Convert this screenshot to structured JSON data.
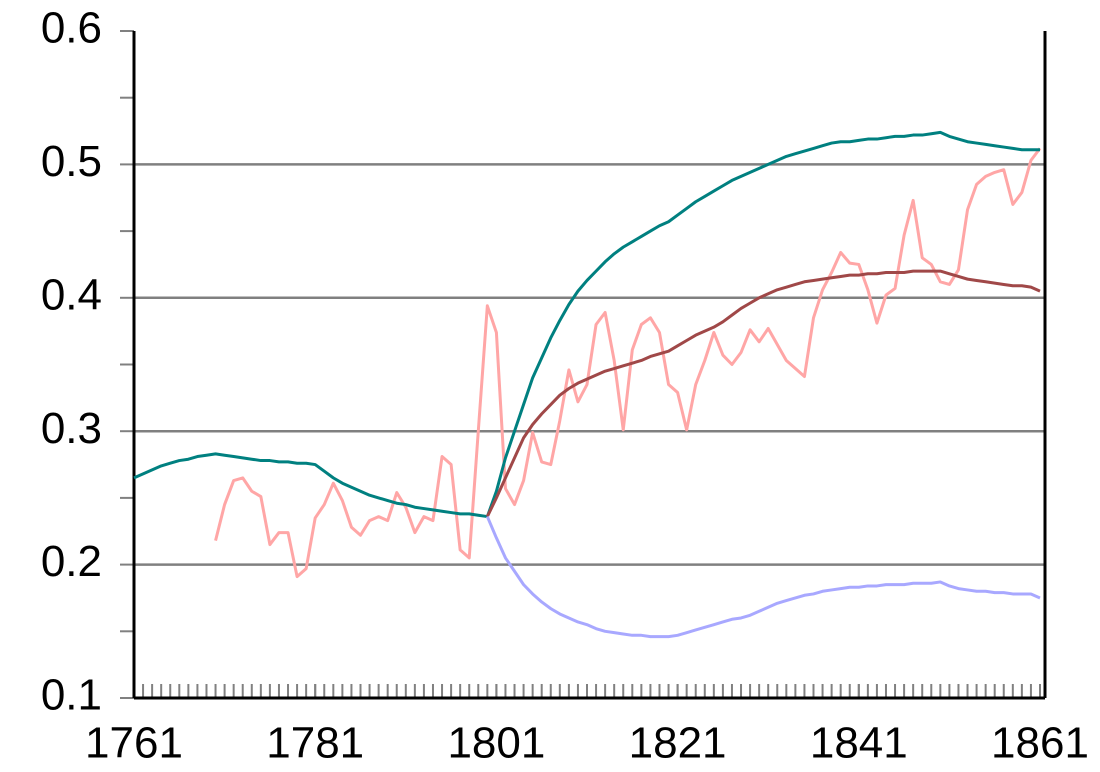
{
  "chart_data": {
    "type": "line",
    "x": [
      1761,
      1762,
      1763,
      1764,
      1765,
      1766,
      1767,
      1768,
      1769,
      1770,
      1771,
      1772,
      1773,
      1774,
      1775,
      1776,
      1777,
      1778,
      1779,
      1780,
      1781,
      1782,
      1783,
      1784,
      1785,
      1786,
      1787,
      1788,
      1789,
      1790,
      1791,
      1792,
      1793,
      1794,
      1795,
      1796,
      1797,
      1798,
      1799,
      1800,
      1801,
      1802,
      1803,
      1804,
      1805,
      1806,
      1807,
      1808,
      1809,
      1810,
      1811,
      1812,
      1813,
      1814,
      1815,
      1816,
      1817,
      1818,
      1819,
      1820,
      1821,
      1822,
      1823,
      1824,
      1825,
      1826,
      1827,
      1828,
      1829,
      1830,
      1831,
      1832,
      1833,
      1834,
      1835,
      1836,
      1837,
      1838,
      1839,
      1840,
      1841,
      1842,
      1843,
      1844,
      1845,
      1846,
      1847,
      1848,
      1849,
      1850,
      1851,
      1852,
      1853,
      1854,
      1855,
      1856,
      1857,
      1858,
      1859,
      1860,
      1861
    ],
    "series": [
      {
        "color": "#ffa6a6",
        "values": [
          null,
          null,
          null,
          null,
          null,
          null,
          null,
          null,
          null,
          0.218,
          0.245,
          0.263,
          0.265,
          0.255,
          0.251,
          0.215,
          0.224,
          0.224,
          0.191,
          0.197,
          0.235,
          0.245,
          0.261,
          0.248,
          0.228,
          0.222,
          0.233,
          0.236,
          0.233,
          0.254,
          0.243,
          0.224,
          0.236,
          0.233,
          0.281,
          0.275,
          0.211,
          0.205,
          0.3,
          0.394,
          0.374,
          0.257,
          0.245,
          0.263,
          0.299,
          0.277,
          0.275,
          0.308,
          0.346,
          0.322,
          0.335,
          0.38,
          0.389,
          0.353,
          0.301,
          0.361,
          0.38,
          0.385,
          0.374,
          0.335,
          0.329,
          0.301,
          0.335,
          0.353,
          0.374,
          0.357,
          0.35,
          0.359,
          0.376,
          0.367,
          0.377,
          0.365,
          0.353,
          0.347,
          0.341,
          0.385,
          0.406,
          0.419,
          0.434,
          0.426,
          0.425,
          0.406,
          0.381,
          0.402,
          0.407,
          0.447,
          0.473,
          0.43,
          0.425,
          0.412,
          0.41,
          0.421,
          0.466,
          0.485,
          0.491,
          0.494,
          0.496,
          0.47,
          0.479,
          0.503,
          0.512
        ]
      },
      {
        "color": "#008080",
        "values": [
          0.265,
          0.268,
          0.271,
          0.274,
          0.276,
          0.278,
          0.279,
          0.281,
          0.282,
          0.283,
          0.282,
          0.281,
          0.28,
          0.279,
          0.278,
          0.278,
          0.277,
          0.277,
          0.276,
          0.276,
          0.275,
          0.27,
          0.265,
          0.261,
          0.258,
          0.255,
          0.252,
          0.25,
          0.248,
          0.246,
          0.245,
          0.243,
          0.242,
          0.241,
          0.24,
          0.239,
          0.238,
          0.238,
          0.237,
          0.236,
          0.255,
          0.28,
          0.3,
          0.32,
          0.34,
          0.355,
          0.37,
          0.383,
          0.395,
          0.405,
          0.413,
          0.42,
          0.427,
          0.433,
          0.438,
          0.442,
          0.446,
          0.45,
          0.454,
          0.457,
          0.462,
          0.467,
          0.472,
          0.476,
          0.48,
          0.484,
          0.488,
          0.491,
          0.494,
          0.497,
          0.5,
          0.503,
          0.506,
          0.508,
          0.51,
          0.512,
          0.514,
          0.516,
          0.517,
          0.517,
          0.518,
          0.519,
          0.519,
          0.52,
          0.521,
          0.521,
          0.522,
          0.522,
          0.523,
          0.524,
          0.521,
          0.519,
          0.517,
          0.516,
          0.515,
          0.514,
          0.513,
          0.512,
          0.511,
          0.511,
          0.511
        ]
      },
      {
        "color": "#a04848",
        "values": [
          null,
          null,
          null,
          null,
          null,
          null,
          null,
          null,
          null,
          null,
          null,
          null,
          null,
          null,
          null,
          null,
          null,
          null,
          null,
          null,
          null,
          null,
          null,
          null,
          null,
          null,
          null,
          null,
          null,
          null,
          null,
          null,
          null,
          null,
          null,
          null,
          null,
          null,
          null,
          0.236,
          0.25,
          0.265,
          0.28,
          0.295,
          0.305,
          0.313,
          0.32,
          0.327,
          0.332,
          0.336,
          0.339,
          0.342,
          0.345,
          0.347,
          0.349,
          0.351,
          0.353,
          0.356,
          0.358,
          0.36,
          0.364,
          0.368,
          0.372,
          0.375,
          0.378,
          0.382,
          0.387,
          0.392,
          0.396,
          0.4,
          0.403,
          0.406,
          0.408,
          0.41,
          0.412,
          0.413,
          0.414,
          0.415,
          0.416,
          0.417,
          0.417,
          0.418,
          0.418,
          0.419,
          0.419,
          0.419,
          0.42,
          0.42,
          0.42,
          0.42,
          0.418,
          0.416,
          0.414,
          0.413,
          0.412,
          0.411,
          0.41,
          0.409,
          0.409,
          0.408,
          0.405
        ]
      },
      {
        "color": "#a8a8ff",
        "values": [
          null,
          null,
          null,
          null,
          null,
          null,
          null,
          null,
          null,
          null,
          null,
          null,
          null,
          null,
          null,
          null,
          null,
          null,
          null,
          null,
          null,
          null,
          null,
          null,
          null,
          null,
          null,
          null,
          null,
          null,
          null,
          null,
          null,
          null,
          null,
          null,
          null,
          null,
          null,
          0.236,
          0.22,
          0.205,
          0.195,
          0.185,
          0.178,
          0.172,
          0.167,
          0.163,
          0.16,
          0.157,
          0.155,
          0.152,
          0.15,
          0.149,
          0.148,
          0.147,
          0.147,
          0.146,
          0.146,
          0.146,
          0.147,
          0.149,
          0.151,
          0.153,
          0.155,
          0.157,
          0.159,
          0.16,
          0.162,
          0.165,
          0.168,
          0.171,
          0.173,
          0.175,
          0.177,
          0.178,
          0.18,
          0.181,
          0.182,
          0.183,
          0.183,
          0.184,
          0.184,
          0.185,
          0.185,
          0.185,
          0.186,
          0.186,
          0.186,
          0.187,
          0.184,
          0.182,
          0.181,
          0.18,
          0.18,
          0.179,
          0.179,
          0.178,
          0.178,
          0.178,
          0.175
        ]
      }
    ],
    "xlim": [
      1761,
      1861
    ],
    "xticks": [
      1761,
      1781,
      1801,
      1821,
      1841,
      1861
    ],
    "ylim": [
      0.1,
      0.6
    ],
    "yticks": [
      0.1,
      0.2,
      0.3,
      0.4,
      0.5,
      0.6
    ],
    "grid": true
  }
}
